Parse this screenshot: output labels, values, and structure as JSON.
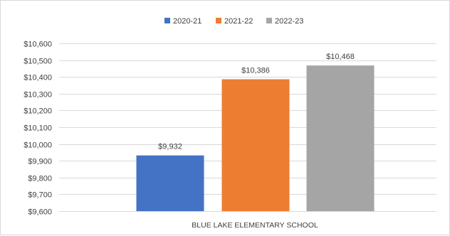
{
  "chart_data": {
    "type": "bar",
    "categories": [
      "BLUE LAKE ELEMENTARY SCHOOL"
    ],
    "series": [
      {
        "name": "2020-21",
        "values": [
          9932
        ],
        "label": "$9,932",
        "color": "#4472c4"
      },
      {
        "name": "2021-22",
        "values": [
          10386
        ],
        "label": "$10,386",
        "color": "#ed7d31"
      },
      {
        "name": "2022-23",
        "values": [
          10468
        ],
        "label": "$10,468",
        "color": "#a5a5a5"
      }
    ],
    "ylim": [
      9600,
      10600
    ],
    "yticks": [
      {
        "value": 9600,
        "label": "$9,600"
      },
      {
        "value": 9700,
        "label": "$9,700"
      },
      {
        "value": 9800,
        "label": "$9,800"
      },
      {
        "value": 9900,
        "label": "$9,900"
      },
      {
        "value": 10000,
        "label": "$10,000"
      },
      {
        "value": 10100,
        "label": "$10,100"
      },
      {
        "value": 10200,
        "label": "$10,200"
      },
      {
        "value": 10300,
        "label": "$10,300"
      },
      {
        "value": 10400,
        "label": "$10,400"
      },
      {
        "value": 10500,
        "label": "$10,500"
      },
      {
        "value": 10600,
        "label": "$10,600"
      }
    ],
    "grid": true,
    "gridColor": "#d9d9d9",
    "legend_position": "top"
  }
}
